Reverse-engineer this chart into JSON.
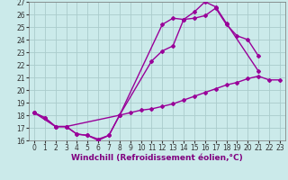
{
  "background_color": "#cbeaea",
  "grid_color": "#aacccc",
  "line_color": "#990099",
  "xlim": [
    -0.5,
    23.5
  ],
  "ylim": [
    16,
    27
  ],
  "xticks": [
    0,
    1,
    2,
    3,
    4,
    5,
    6,
    7,
    8,
    9,
    10,
    11,
    12,
    13,
    14,
    15,
    16,
    17,
    18,
    19,
    20,
    21,
    22,
    23
  ],
  "yticks": [
    16,
    17,
    18,
    19,
    20,
    21,
    22,
    23,
    24,
    25,
    26,
    27
  ],
  "line1_x": [
    0,
    1,
    2,
    3,
    4,
    5,
    6,
    7,
    8,
    12,
    13,
    14,
    15,
    16,
    17,
    18,
    21
  ],
  "line1_y": [
    18.2,
    17.8,
    17.1,
    17.1,
    16.5,
    16.4,
    16.0,
    16.4,
    18.0,
    25.2,
    25.7,
    25.6,
    26.2,
    27.0,
    26.6,
    25.3,
    21.5
  ],
  "line2_x": [
    0,
    1,
    2,
    3,
    8,
    11,
    12,
    13,
    14,
    15,
    16,
    17,
    18,
    19,
    20,
    21
  ],
  "line2_y": [
    18.2,
    17.8,
    17.1,
    17.1,
    18.0,
    22.3,
    23.1,
    23.5,
    25.6,
    25.7,
    25.9,
    26.5,
    25.2,
    24.3,
    24.0,
    22.7
  ],
  "line3_x": [
    0,
    2,
    3,
    4,
    5,
    6,
    7,
    8,
    9,
    10,
    11,
    12,
    13,
    14,
    15,
    16,
    17,
    18,
    19,
    20,
    21,
    22,
    23
  ],
  "line3_y": [
    18.2,
    17.1,
    17.1,
    16.5,
    16.4,
    16.1,
    16.4,
    18.0,
    18.2,
    18.4,
    18.5,
    18.7,
    18.9,
    19.2,
    19.5,
    19.8,
    20.1,
    20.4,
    20.6,
    20.9,
    21.1,
    20.8,
    20.8
  ],
  "xlabel": "Windchill (Refroidissement éolien,°C)",
  "marker": "D",
  "markersize": 2,
  "linewidth": 1.0,
  "tick_fontsize": 5.5,
  "xlabel_fontsize": 6.5
}
